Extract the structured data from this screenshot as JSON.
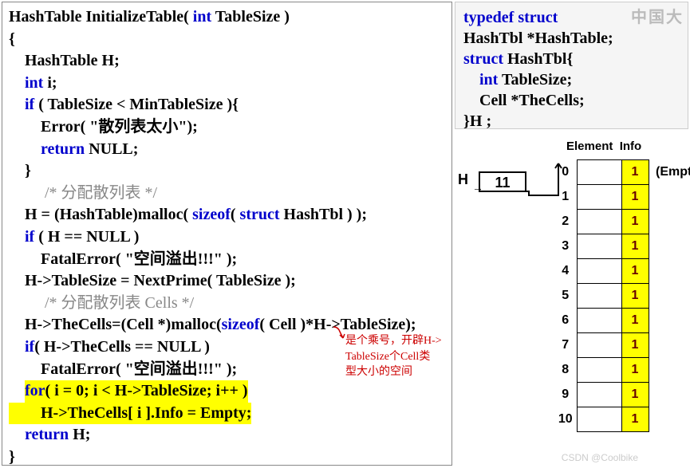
{
  "code": {
    "l1a": "HashTable  InitializeTable( ",
    "l1b": "int",
    "l1c": " TableSize )",
    "l2": "{",
    "l3": "    HashTable H;",
    "l4a": "    ",
    "l4b": "int",
    "l4c": " i;",
    "l5a": "    ",
    "l5b": "if",
    "l5c": " ( TableSize < MinTableSize ){",
    "l6": "        Error( \"散列表太小\");",
    "l7a": "        ",
    "l7b": "return",
    "l7c": " NULL;",
    "l8": "    }",
    "l9": "         /* 分配散列表 */",
    "l10a": "    H = (HashTable)malloc( ",
    "l10b": "sizeof",
    "l10c": "( ",
    "l10d": "struct",
    "l10e": " HashTbl ) );",
    "l11a": "    ",
    "l11b": "if",
    "l11c": " ( H == NULL )",
    "l12": "        FatalError( \"空间溢出!!!\" );",
    "l13": "    H->TableSize = NextPrime( TableSize );",
    "l14": "         /* 分配散列表 Cells */",
    "l15a": "    H->TheCells=(Cell *)malloc(",
    "l15b": "sizeof",
    "l15c": "( Cell )*H->TableSize);",
    "l16a": "    ",
    "l16b": "if",
    "l16c": "( H->TheCells == NULL )",
    "l17": "        FatalError( \"空间溢出!!!\" );",
    "l18a": "    ",
    "l18b": "for",
    "l18c": "( i = 0; i < H->TableSize; i++ )",
    "l19": "        H->TheCells[ i ].Info = Empty;",
    "l20a": "    ",
    "l20b": "return",
    "l20c": " H;",
    "l21": "}"
  },
  "struct": {
    "l1a": "typedef",
    "l1b": " ",
    "l1c": "struct",
    "l2": "HashTbl *HashTable;",
    "l3a": "struct",
    "l3b": " HashTbl{",
    "l4a": "    ",
    "l4b": "int",
    "l4c": " TableSize;",
    "l5": "    Cell *TheCells;",
    "l6": "}H ;"
  },
  "annotation": {
    "line1": "是个乘号，开辟H->",
    "line2": "TableSize个Cell类",
    "line3": "型大小的空间"
  },
  "diagram": {
    "header_element": "Element",
    "header_info": "Info",
    "h_label": "H",
    "h_value": "11",
    "empty_label": "(Empty)",
    "indices": [
      "0",
      "1",
      "2",
      "3",
      "4",
      "5",
      "6",
      "7",
      "8",
      "9",
      "10"
    ],
    "info_value": "1",
    "colors": {
      "info_bg": "#ffff00",
      "info_text": "#660000"
    }
  },
  "watermark": "中国大",
  "csdn": "CSDN @Coolbike"
}
